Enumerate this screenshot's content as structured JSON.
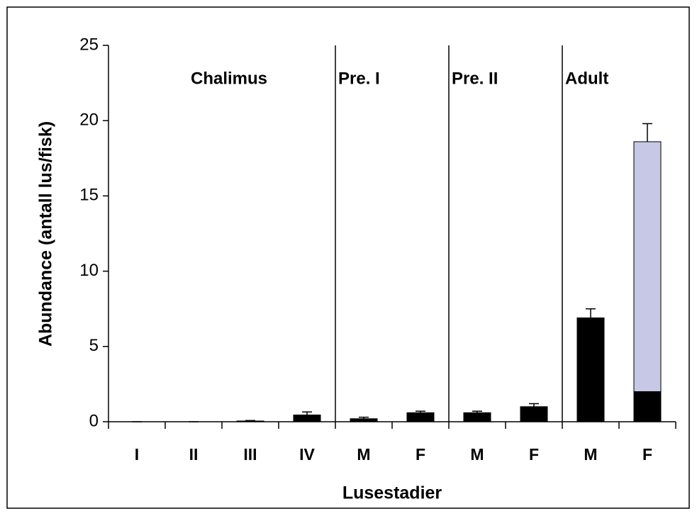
{
  "chart_data": {
    "type": "bar",
    "categories": [
      "I",
      "II",
      "III",
      "IV",
      "M",
      "F",
      "M",
      "F",
      "M",
      "F"
    ],
    "series": [
      {
        "color": "#000000",
        "values": [
          0,
          0,
          0.05,
          0.45,
          0.2,
          0.6,
          0.6,
          1.0,
          6.9,
          2.0
        ],
        "errors": [
          0,
          0,
          0.03,
          0.2,
          0.1,
          0.1,
          0.1,
          0.2,
          0.6,
          null
        ]
      },
      {
        "color": "#c6c8e6",
        "values": [
          null,
          null,
          null,
          null,
          null,
          null,
          null,
          null,
          null,
          16.6
        ],
        "errors": [
          null,
          null,
          null,
          null,
          null,
          null,
          null,
          null,
          null,
          1.2
        ]
      }
    ],
    "stacked": true,
    "groups": [
      {
        "label": "Chalimus",
        "start": 0,
        "end": 3
      },
      {
        "label": "Pre. I",
        "start": 4,
        "end": 5
      },
      {
        "label": "Pre. II",
        "start": 6,
        "end": 7
      },
      {
        "label": "Adult",
        "start": 8,
        "end": 9
      }
    ],
    "xlabel": "Lusestadier",
    "ylabel": "Abundance (antall lus/fisk)",
    "ylim": [
      0,
      25
    ],
    "yticks": [
      0,
      5,
      10,
      15,
      20,
      25
    ]
  }
}
